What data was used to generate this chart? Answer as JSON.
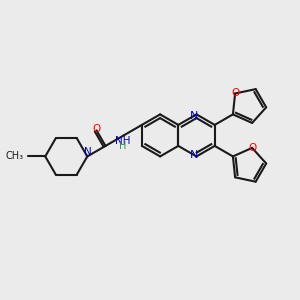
{
  "bg_color": "#ebebeb",
  "bond_color": "#1a1a1a",
  "bond_width": 1.5,
  "N_color": "#0000cd",
  "O_color": "#ff0000",
  "NH_color": "#2e8b57",
  "font_size": 7.5,
  "figsize": [
    3.0,
    3.0
  ],
  "dpi": 100,
  "xlim": [
    0,
    10
  ],
  "ylim": [
    0,
    10
  ]
}
